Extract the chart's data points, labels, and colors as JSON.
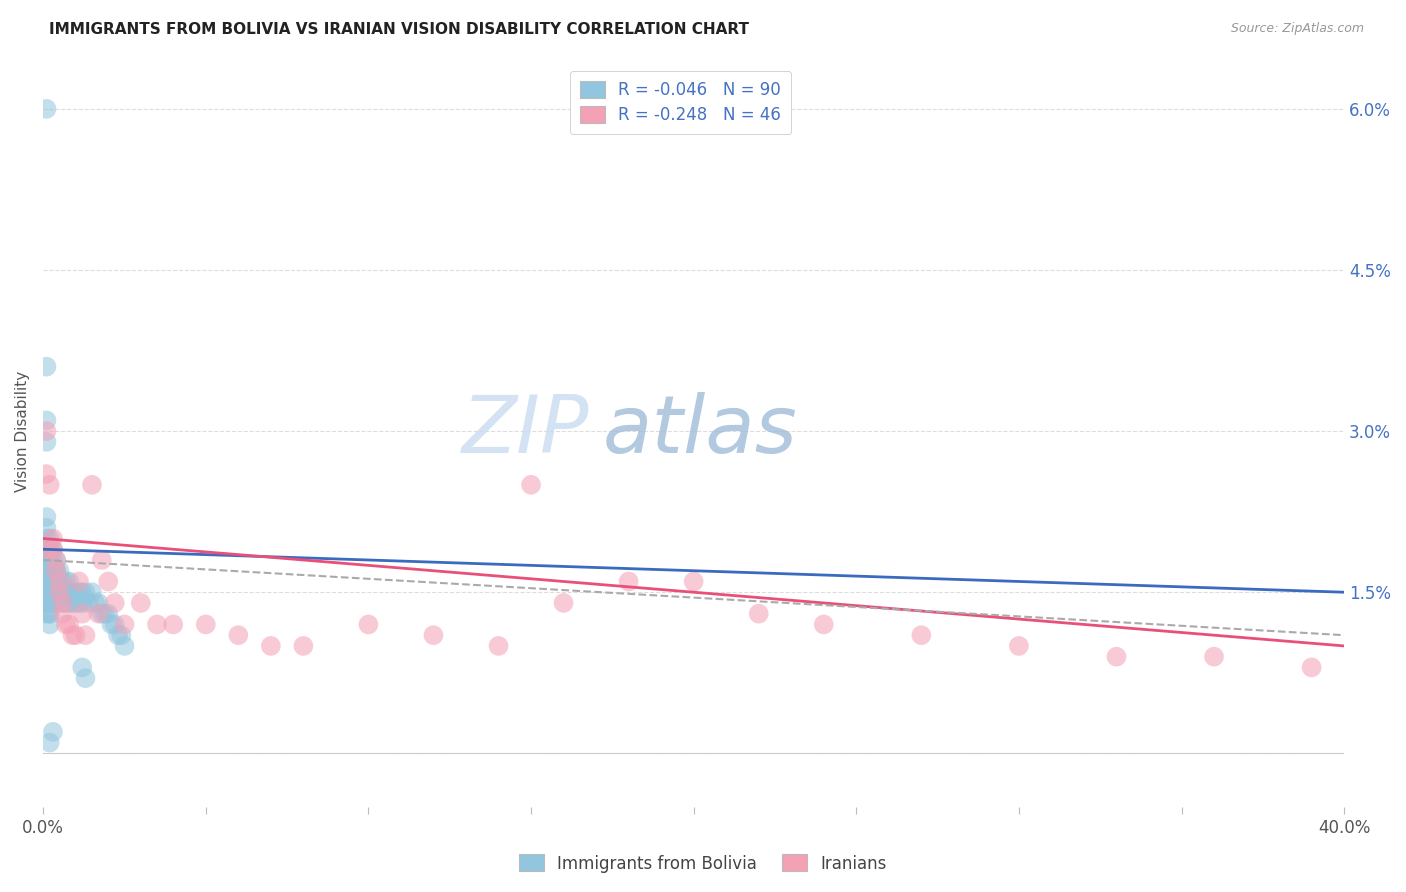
{
  "title": "IMMIGRANTS FROM BOLIVIA VS IRANIAN VISION DISABILITY CORRELATION CHART",
  "source": "Source: ZipAtlas.com",
  "ylabel": "Vision Disability",
  "watermark_zip": "ZIP",
  "watermark_atlas": "atlas",
  "xlim": [
    0.0,
    0.4
  ],
  "ylim": [
    -0.005,
    0.065
  ],
  "bolivia_R": -0.046,
  "bolivia_N": 90,
  "iranian_R": -0.248,
  "iranian_N": 46,
  "bolivia_color": "#92C5DE",
  "iranian_color": "#F4A0B5",
  "bolivia_trend_color": "#3A6BBF",
  "iranian_trend_color": "#E8507A",
  "overall_trend_color": "#AAAAAA",
  "background_color": "#FFFFFF",
  "grid_color": "#DDDDDD",
  "legend_label_bolivia": "Immigrants from Bolivia",
  "legend_label_iranians": "Iranians",
  "x_tick_positions": [
    0.0,
    0.05,
    0.1,
    0.15,
    0.2,
    0.25,
    0.3,
    0.35,
    0.4
  ],
  "x_tick_labels": [
    "0.0%",
    "",
    "",
    "",
    "",
    "",
    "",
    "",
    "40.0%"
  ],
  "y_tick_positions": [
    0.0,
    0.015,
    0.03,
    0.045,
    0.06
  ],
  "y_tick_labels_right": [
    "",
    "1.5%",
    "3.0%",
    "4.5%",
    "6.0%"
  ],
  "bolivia_x": [
    0.001,
    0.001,
    0.001,
    0.001,
    0.001,
    0.001,
    0.001,
    0.001,
    0.001,
    0.001,
    0.001,
    0.001,
    0.001,
    0.001,
    0.001,
    0.001,
    0.001,
    0.001,
    0.001,
    0.001,
    0.002,
    0.002,
    0.002,
    0.002,
    0.002,
    0.002,
    0.002,
    0.002,
    0.002,
    0.002,
    0.002,
    0.002,
    0.002,
    0.002,
    0.002,
    0.003,
    0.003,
    0.003,
    0.003,
    0.003,
    0.003,
    0.003,
    0.003,
    0.004,
    0.004,
    0.004,
    0.004,
    0.004,
    0.004,
    0.004,
    0.005,
    0.005,
    0.005,
    0.005,
    0.005,
    0.006,
    0.006,
    0.006,
    0.006,
    0.007,
    0.007,
    0.007,
    0.008,
    0.008,
    0.008,
    0.009,
    0.009,
    0.01,
    0.01,
    0.011,
    0.011,
    0.012,
    0.012,
    0.013,
    0.014,
    0.015,
    0.016,
    0.017,
    0.018,
    0.019,
    0.02,
    0.021,
    0.022,
    0.023,
    0.024,
    0.025,
    0.012,
    0.013,
    0.002,
    0.003
  ],
  "bolivia_y": [
    0.06,
    0.031,
    0.029,
    0.036,
    0.022,
    0.021,
    0.02,
    0.019,
    0.019,
    0.018,
    0.018,
    0.017,
    0.017,
    0.016,
    0.016,
    0.015,
    0.015,
    0.014,
    0.014,
    0.013,
    0.02,
    0.019,
    0.018,
    0.018,
    0.017,
    0.017,
    0.016,
    0.016,
    0.015,
    0.015,
    0.014,
    0.014,
    0.013,
    0.013,
    0.012,
    0.019,
    0.018,
    0.017,
    0.017,
    0.016,
    0.016,
    0.015,
    0.015,
    0.018,
    0.017,
    0.017,
    0.016,
    0.016,
    0.015,
    0.014,
    0.017,
    0.016,
    0.016,
    0.015,
    0.015,
    0.016,
    0.015,
    0.015,
    0.014,
    0.016,
    0.015,
    0.014,
    0.016,
    0.015,
    0.014,
    0.015,
    0.014,
    0.015,
    0.014,
    0.015,
    0.014,
    0.015,
    0.014,
    0.015,
    0.014,
    0.015,
    0.014,
    0.014,
    0.013,
    0.013,
    0.013,
    0.012,
    0.012,
    0.011,
    0.011,
    0.01,
    0.008,
    0.007,
    0.001,
    0.002
  ],
  "iranian_x": [
    0.001,
    0.001,
    0.002,
    0.002,
    0.003,
    0.003,
    0.004,
    0.004,
    0.005,
    0.005,
    0.006,
    0.006,
    0.007,
    0.008,
    0.009,
    0.01,
    0.011,
    0.012,
    0.013,
    0.015,
    0.017,
    0.018,
    0.02,
    0.022,
    0.025,
    0.03,
    0.035,
    0.04,
    0.05,
    0.06,
    0.07,
    0.08,
    0.1,
    0.12,
    0.14,
    0.15,
    0.16,
    0.18,
    0.2,
    0.22,
    0.24,
    0.27,
    0.3,
    0.33,
    0.36,
    0.39
  ],
  "iranian_y": [
    0.03,
    0.026,
    0.025,
    0.019,
    0.02,
    0.019,
    0.018,
    0.017,
    0.016,
    0.015,
    0.014,
    0.013,
    0.012,
    0.012,
    0.011,
    0.011,
    0.016,
    0.013,
    0.011,
    0.025,
    0.013,
    0.018,
    0.016,
    0.014,
    0.012,
    0.014,
    0.012,
    0.012,
    0.012,
    0.011,
    0.01,
    0.01,
    0.012,
    0.011,
    0.01,
    0.025,
    0.014,
    0.016,
    0.016,
    0.013,
    0.012,
    0.011,
    0.01,
    0.009,
    0.009,
    0.008
  ]
}
